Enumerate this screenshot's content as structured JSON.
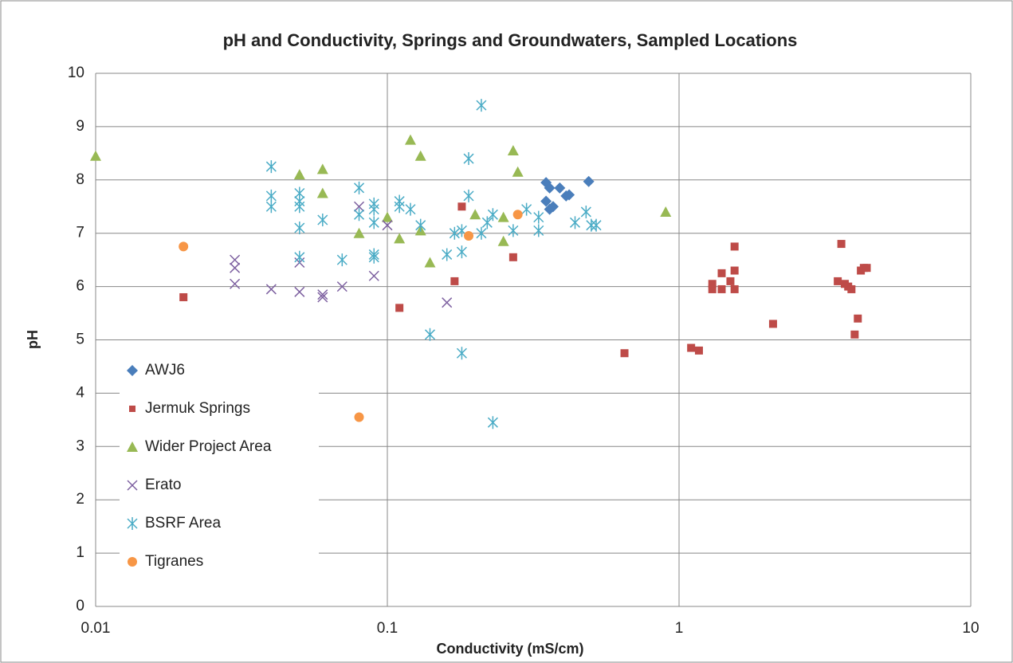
{
  "chart_data": {
    "type": "scatter",
    "title": "pH and Conductivity, Springs and Groundwaters, Sampled Locations",
    "x_label": "Conductivity (mS/cm)",
    "y_label": "pH",
    "xscale": "log",
    "xlim": [
      0.01,
      10
    ],
    "xticks": [
      0.01,
      0.1,
      1,
      10
    ],
    "ylim": [
      0,
      10
    ],
    "yticks": [
      0,
      1,
      2,
      3,
      4,
      5,
      6,
      7,
      8,
      9,
      10
    ],
    "grid": true,
    "legend": "left",
    "series": [
      {
        "name": "AWJ6",
        "color": "#4a7ebb",
        "marker": "diamond",
        "x": [
          0.35,
          0.36,
          0.39,
          0.41,
          0.42,
          0.35,
          0.37,
          0.36,
          0.49
        ],
        "y": [
          7.95,
          7.85,
          7.85,
          7.7,
          7.72,
          7.6,
          7.5,
          7.45,
          7.97
        ]
      },
      {
        "name": "Jermuk Springs",
        "color": "#be4b48",
        "marker": "square",
        "x": [
          0.02,
          0.18,
          0.17,
          0.11,
          0.27,
          0.65,
          1.1,
          1.17,
          1.3,
          1.3,
          1.4,
          1.4,
          1.5,
          1.55,
          1.55,
          1.55,
          2.1,
          3.6,
          3.5,
          3.7,
          3.8,
          3.9,
          4.1,
          4.0,
          4.2,
          4.3,
          4.4
        ],
        "y": [
          5.8,
          7.5,
          6.1,
          5.6,
          6.55,
          4.75,
          4.85,
          4.8,
          6.05,
          5.95,
          5.95,
          6.25,
          6.1,
          6.75,
          6.3,
          5.95,
          5.3,
          6.8,
          6.1,
          6.05,
          6.0,
          5.95,
          5.4,
          5.1,
          6.3,
          6.35,
          6.35
        ]
      },
      {
        "name": "Wider Project Area",
        "color": "#98b954",
        "marker": "triangle",
        "x": [
          0.01,
          0.05,
          0.06,
          0.06,
          0.08,
          0.1,
          0.11,
          0.12,
          0.13,
          0.13,
          0.14,
          0.2,
          0.25,
          0.25,
          0.27,
          0.28,
          0.9
        ],
        "y": [
          8.45,
          8.1,
          8.2,
          7.75,
          7.0,
          7.3,
          6.9,
          8.75,
          8.45,
          7.05,
          6.45,
          7.35,
          6.85,
          7.3,
          8.55,
          8.15,
          7.4
        ]
      },
      {
        "name": "Erato",
        "color": "#7d60a0",
        "marker": "cross",
        "x": [
          0.03,
          0.03,
          0.03,
          0.04,
          0.05,
          0.05,
          0.06,
          0.06,
          0.07,
          0.08,
          0.09,
          0.1,
          0.16
        ],
        "y": [
          6.5,
          6.35,
          6.05,
          5.95,
          6.45,
          5.9,
          5.85,
          5.8,
          6.0,
          7.5,
          6.2,
          7.15,
          5.7
        ]
      },
      {
        "name": "BSRF Area",
        "color": "#4bacc6",
        "marker": "star",
        "x": [
          0.04,
          0.04,
          0.04,
          0.05,
          0.05,
          0.05,
          0.05,
          0.05,
          0.06,
          0.07,
          0.08,
          0.08,
          0.09,
          0.09,
          0.09,
          0.09,
          0.09,
          0.11,
          0.11,
          0.12,
          0.13,
          0.14,
          0.16,
          0.17,
          0.18,
          0.18,
          0.18,
          0.19,
          0.19,
          0.21,
          0.21,
          0.22,
          0.23,
          0.23,
          0.27,
          0.3,
          0.33,
          0.33,
          0.44,
          0.48,
          0.5,
          0.52
        ],
        "y": [
          8.25,
          7.7,
          7.5,
          7.75,
          7.6,
          7.5,
          7.1,
          6.55,
          7.25,
          6.5,
          7.85,
          7.35,
          7.55,
          7.45,
          7.2,
          6.6,
          6.55,
          7.6,
          7.5,
          7.45,
          7.15,
          5.1,
          6.6,
          7.0,
          7.05,
          6.65,
          4.75,
          8.4,
          7.7,
          7.0,
          9.4,
          7.2,
          7.35,
          3.45,
          7.05,
          7.45,
          7.3,
          7.05,
          7.2,
          7.4,
          7.15,
          7.15
        ]
      },
      {
        "name": "Tigranes",
        "color": "#f79646",
        "marker": "circle",
        "x": [
          0.02,
          0.08,
          0.19,
          0.28
        ],
        "y": [
          6.75,
          3.55,
          6.95,
          7.35
        ]
      }
    ]
  }
}
